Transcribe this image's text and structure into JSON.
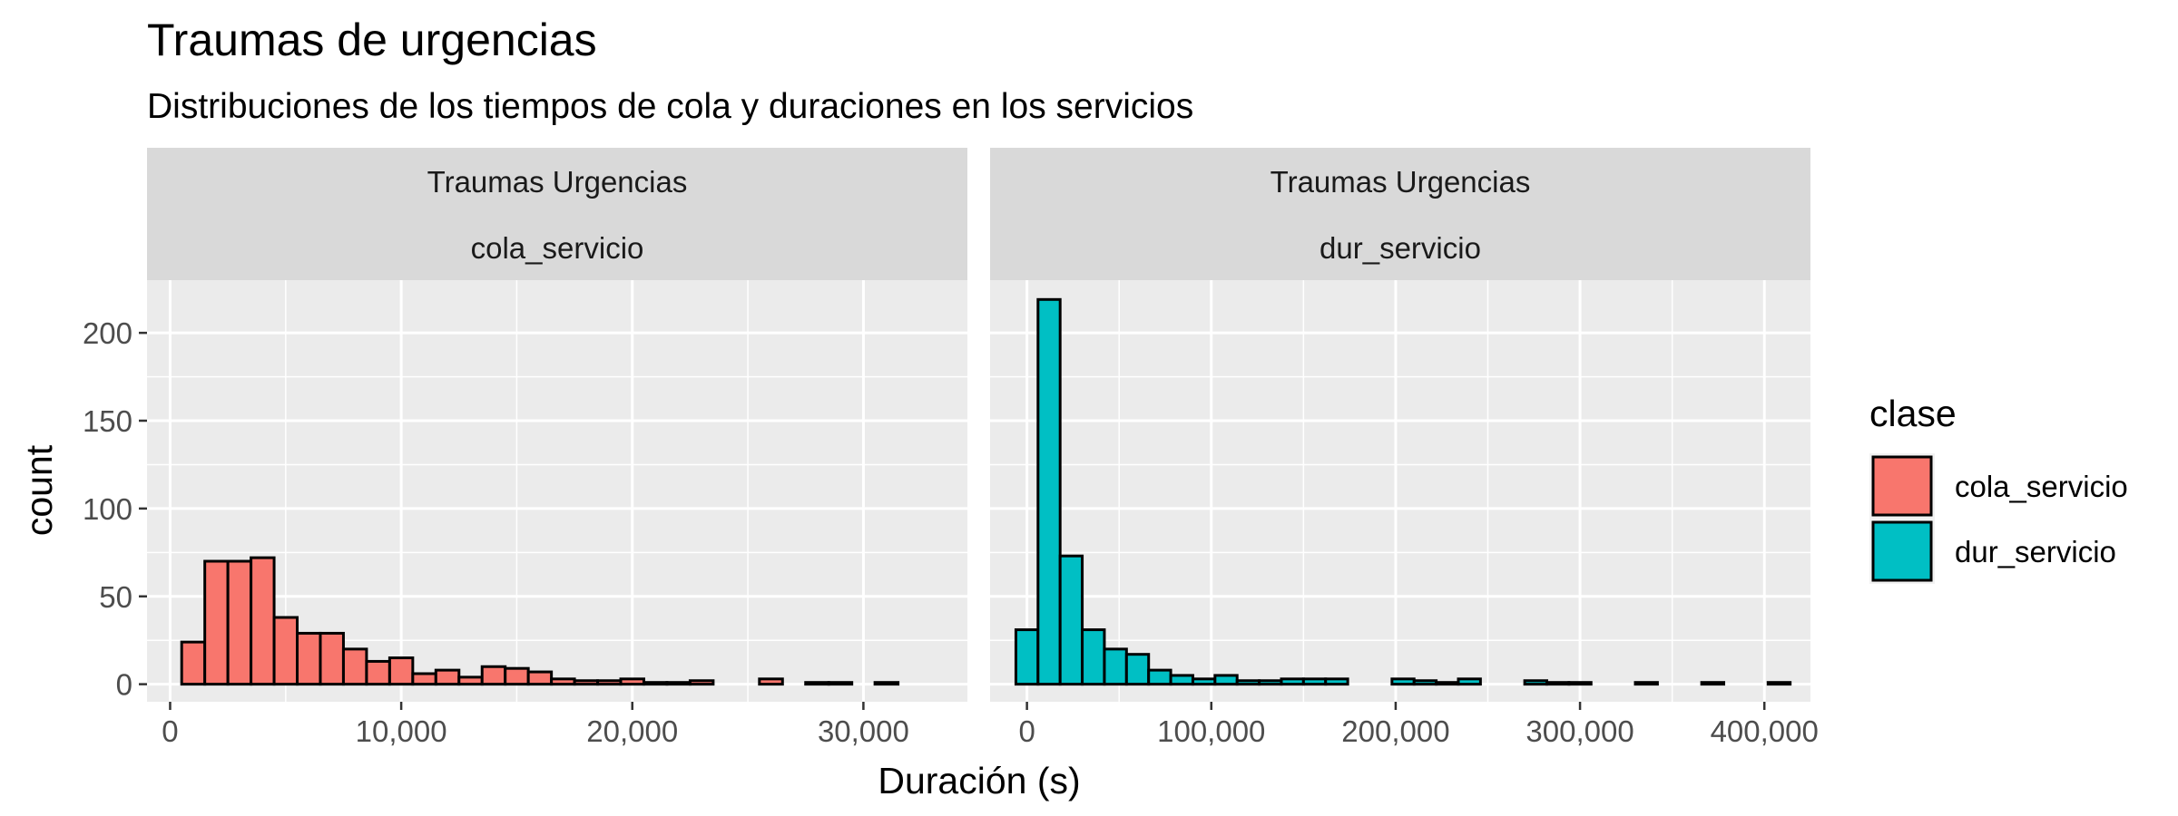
{
  "title": "Traumas de urgencias",
  "subtitle": "Distribuciones de los tiempos de cola y duraciones en los servicios",
  "chart_data": {
    "type": "bar",
    "subtype": "faceted-histogram",
    "xlabel": "Duración (s)",
    "ylabel": "count",
    "ylim": [
      -10,
      230
    ],
    "yticks": [
      0,
      50,
      100,
      150,
      200
    ],
    "grid": true,
    "legend": {
      "title": "clase",
      "placement": "right",
      "entries": [
        {
          "label": "cola_servicio",
          "color": "#F8766D"
        },
        {
          "label": "dur_servicio",
          "color": "#00BFC4"
        }
      ]
    },
    "panels": [
      {
        "strip": [
          "Traumas Urgencias",
          "cola_servicio"
        ],
        "color": "#F8766D",
        "xlim": [
          -1000,
          34500
        ],
        "xticks": [
          0,
          10000,
          20000,
          30000
        ],
        "xtick_labels": [
          "0",
          "10,000",
          "20,000",
          "30,000"
        ],
        "bin_start": 500,
        "bin_width": 1000,
        "counts": [
          24,
          70,
          70,
          72,
          38,
          29,
          29,
          20,
          13,
          15,
          6,
          8,
          4,
          10,
          9,
          7,
          3,
          2,
          2,
          3,
          1,
          1,
          2,
          0,
          0,
          3,
          0,
          1,
          1,
          0,
          1,
          0
        ]
      },
      {
        "strip": [
          "Traumas Urgencias",
          "dur_servicio"
        ],
        "color": "#00BFC4",
        "xlim": [
          -20000,
          425000
        ],
        "xticks": [
          0,
          100000,
          200000,
          300000,
          400000
        ],
        "xtick_labels": [
          "0",
          "100,000",
          "200,000",
          "300,000",
          "400,000"
        ],
        "bin_start": -6000,
        "bin_width": 12000,
        "counts": [
          31,
          219,
          73,
          31,
          20,
          17,
          8,
          5,
          3,
          5,
          2,
          2,
          3,
          3,
          3,
          0,
          0,
          3,
          2,
          1,
          3,
          0,
          0,
          2,
          1,
          1,
          0,
          0,
          1,
          0,
          0,
          1,
          0,
          0,
          1
        ]
      }
    ]
  }
}
